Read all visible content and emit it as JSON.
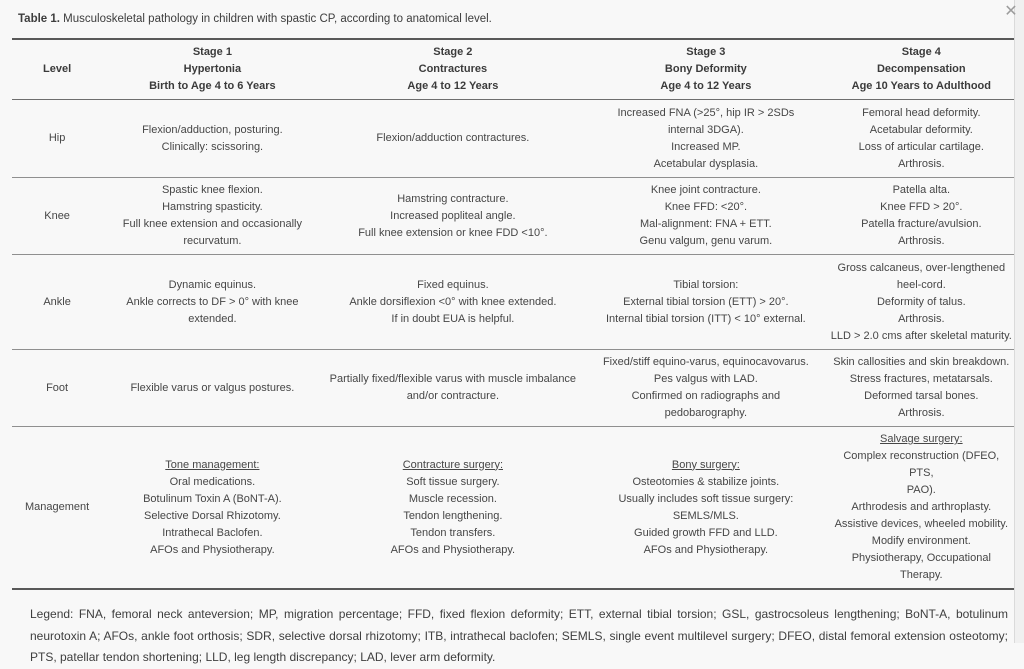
{
  "icons": {
    "close": "✕"
  },
  "colors": {
    "page_bg": "#f8f8f8",
    "rule_heavy": "#595959",
    "rule_light": "#8f8f8f",
    "text": "#434343",
    "close_icon": "#9c9c9c"
  },
  "caption": {
    "label": "Table 1.",
    "text": " Musculoskeletal pathology in children with spastic CP, according to anatomical level."
  },
  "table": {
    "columns": [
      {
        "lines": [
          "Level"
        ]
      },
      {
        "lines": [
          "Stage 1",
          "Hypertonia",
          "Birth to Age 4 to 6 Years"
        ]
      },
      {
        "lines": [
          "Stage 2",
          "Contractures",
          "Age 4 to 12 Years"
        ]
      },
      {
        "lines": [
          "Stage 3",
          "Bony Deformity",
          "Age 4 to 12 Years"
        ]
      },
      {
        "lines": [
          "Stage 4",
          "Decompensation",
          "Age 10 Years to Adulthood"
        ]
      }
    ],
    "rows": [
      {
        "level": "Hip",
        "cells": [
          [
            "Flexion/adduction, posturing.",
            "Clinically: scissoring."
          ],
          [
            "Flexion/adduction contractures."
          ],
          [
            "Increased FNA (>25°, hip IR > 2SDs",
            "internal 3DGA).",
            "Increased MP.",
            "Acetabular dysplasia."
          ],
          [
            "Femoral head deformity.",
            "Acetabular deformity.",
            "Loss of articular cartilage.",
            "Arthrosis."
          ]
        ]
      },
      {
        "level": "Knee",
        "cells": [
          [
            "Spastic knee flexion.",
            "Hamstring spasticity.",
            "Full knee extension and occasionally",
            "recurvatum."
          ],
          [
            "Hamstring contracture.",
            "Increased popliteal angle.",
            "Full knee extension or knee FDD <10°."
          ],
          [
            "Knee joint contracture.",
            "Knee FFD: <20°.",
            "Mal-alignment: FNA + ETT.",
            "Genu valgum, genu varum."
          ],
          [
            "Patella alta.",
            "Knee FFD > 20°.",
            "Patella fracture/avulsion.",
            "Arthrosis."
          ]
        ]
      },
      {
        "level": "Ankle",
        "cells": [
          [
            "Dynamic equinus.",
            "Ankle corrects to DF > 0° with knee",
            "extended."
          ],
          [
            "Fixed equinus.",
            "Ankle dorsiflexion <0° with knee extended.",
            "If in doubt EUA is helpful."
          ],
          [
            "Tibial torsion:",
            "External tibial torsion (ETT) > 20°.",
            "Internal tibial torsion (ITT) < 10° external."
          ],
          [
            "Gross calcaneus, over-lengthened",
            "heel-cord.",
            "Deformity of talus.",
            "Arthrosis.",
            "LLD > 2.0 cms after skeletal maturity."
          ]
        ]
      },
      {
        "level": "Foot",
        "cells": [
          [
            "Flexible varus or valgus postures."
          ],
          [
            "Partially fixed/flexible varus with muscle imbalance",
            "and/or contracture."
          ],
          [
            "Fixed/stiff equino-varus, equinocavovarus.",
            "Pes valgus with LAD.",
            "Confirmed on radiographs and",
            "pedobarography."
          ],
          [
            "Skin callosities and skin breakdown.",
            "Stress fractures, metatarsals.",
            "Deformed tarsal bones.",
            "Arthrosis."
          ]
        ]
      }
    ],
    "management": {
      "level": "Management",
      "cells": [
        {
          "heading": "Tone management:",
          "lines": [
            "Oral medications.",
            "Botulinum Toxin A (BoNT-A).",
            "Selective Dorsal Rhizotomy.",
            "Intrathecal Baclofen.",
            "AFOs and Physiotherapy."
          ]
        },
        {
          "heading": "Contracture surgery:",
          "lines": [
            "Soft tissue surgery.",
            "Muscle recession.",
            "Tendon lengthening.",
            "Tendon transfers.",
            "AFOs and Physiotherapy."
          ]
        },
        {
          "heading": "Bony surgery:",
          "lines": [
            "Osteotomies & stabilize joints.",
            "Usually includes soft tissue surgery:",
            "SEMLS/MLS.",
            "Guided growth FFD and LLD.",
            "AFOs and Physiotherapy."
          ]
        },
        {
          "heading": "Salvage surgery:",
          "lines": [
            "Complex reconstruction (DFEO, PTS,",
            "PAO).",
            "Arthrodesis and arthroplasty.",
            "Assistive devices, wheeled mobility.",
            "Modify environment.",
            "Physiotherapy, Occupational Therapy."
          ]
        }
      ]
    }
  },
  "legend": {
    "text": "Legend: FNA, femoral neck anteversion; MP, migration percentage; FFD, fixed flexion deformity; ETT, external tibial torsion; GSL, gastrocsoleus lengthening; BoNT-A, botulinum neurotoxin A; AFOs, ankle foot orthosis; SDR, selective dorsal rhizotomy; ITB, intrathecal baclofen; SEMLS, single event multilevel surgery; DFEO, distal femoral extension osteotomy; PTS, patellar tendon shortening; LLD, leg length discrepancy; LAD, lever arm deformity."
  }
}
